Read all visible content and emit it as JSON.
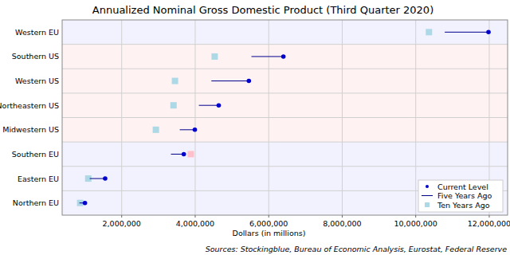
{
  "chart_data": {
    "type": "dumbbell",
    "title": "Annualized Nominal Gross Domestic Product (Third Quarter 2020)",
    "x_label": "Dollars (in millions)",
    "annotations": [
      "Sources: Stockingblue, Bureau of Economic Analysis, Eurostat, Federal Reserve"
    ],
    "orientation": "horizontal",
    "categories": [
      "Western EU",
      "Southern US",
      "Western US",
      "Northeastern US",
      "Midwestern US",
      "Southern EU",
      "Eastern EU",
      "Northern EU"
    ],
    "series": [
      {
        "name": "Current Level",
        "type": "point",
        "marker": "circle",
        "color": "#0000cc",
        "values": [
          11980000,
          6400000,
          5460000,
          4640000,
          3990000,
          3690000,
          1550000,
          1000000
        ]
      },
      {
        "name": "Five Years Ago",
        "type": "segment",
        "line_style": "solid",
        "color": "#00008b",
        "values": [
          10790000,
          5530000,
          4440000,
          4100000,
          3580000,
          3340000,
          1130000,
          850000
        ]
      },
      {
        "name": "Ten Years Ago",
        "type": "point",
        "marker": "square",
        "color": "#add8e6",
        "colors": [
          "#add8e6",
          "#add8e6",
          "#add8e6",
          "#add8e6",
          "#add8e6",
          "#ffc0cb",
          "#add8e6",
          "#add8e6"
        ],
        "values": [
          10360000,
          4530000,
          3450000,
          3410000,
          2930000,
          3880000,
          1090000,
          870000
        ]
      }
    ],
    "xlim": [
      380000,
      12500000
    ],
    "xticks": [
      {
        "value": 2000000,
        "label": "2,000,000"
      },
      {
        "value": 4000000,
        "label": "4,000,000"
      },
      {
        "value": 6000000,
        "label": "6,000,000"
      },
      {
        "value": 8000000,
        "label": "8,000,000"
      },
      {
        "value": 10000000,
        "label": "10,000,000"
      },
      {
        "value": 12000000,
        "label": "12,000,000"
      }
    ],
    "grid": true,
    "legend": "bottom-right"
  }
}
